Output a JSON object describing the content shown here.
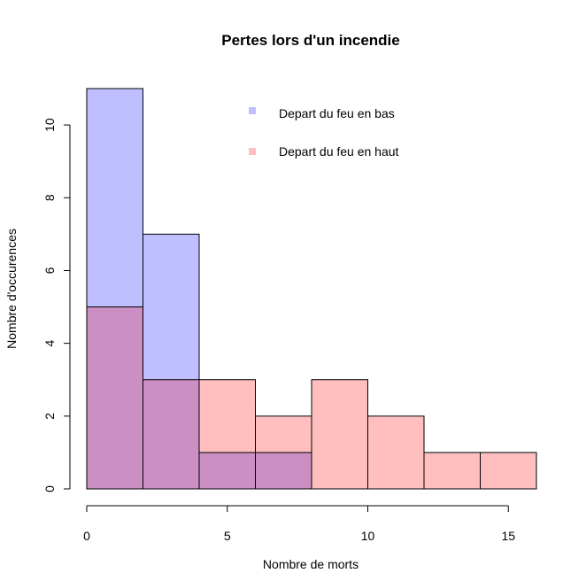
{
  "chart_data": {
    "type": "bar",
    "title": "Pertes lors d'un incendie",
    "xlabel": "Nombre de morts",
    "ylabel": "Nombre d'occurences",
    "bin_edges": [
      0,
      2,
      4,
      6,
      8,
      10,
      12,
      14,
      16
    ],
    "xlim": [
      0,
      16
    ],
    "ylim": [
      0,
      11
    ],
    "x_ticks": [
      0,
      5,
      10,
      15
    ],
    "y_ticks": [
      0,
      2,
      4,
      6,
      8,
      10
    ],
    "grid": false,
    "legend_position": "top-right",
    "overlap_color": "#cc8fc4",
    "series": [
      {
        "name": "Depart du feu en bas",
        "color": "#bfbfff",
        "values": [
          11,
          7,
          1,
          1,
          0,
          0,
          0,
          0
        ]
      },
      {
        "name": "Depart du feu en haut",
        "color": "#ffbfbf",
        "values": [
          5,
          3,
          3,
          2,
          3,
          2,
          1,
          1
        ]
      }
    ]
  }
}
